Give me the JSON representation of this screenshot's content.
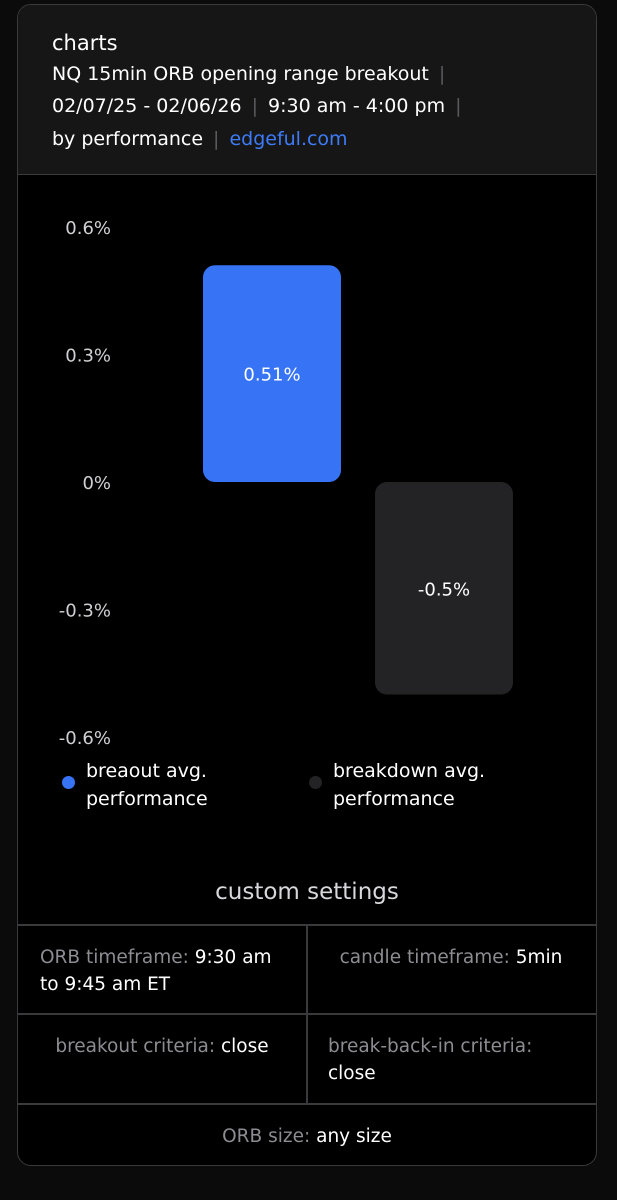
{
  "header": {
    "title": "charts",
    "line1": "NQ 15min ORB opening range breakout",
    "date_range": "02/07/25 - 02/06/26",
    "session": "9:30 am - 4:00 pm",
    "sort": "by performance",
    "link": "edgeful.com"
  },
  "chart_data": {
    "type": "bar",
    "categories": [
      "breaout avg. performance",
      "breakdown avg. performance"
    ],
    "values": [
      0.51,
      -0.5
    ],
    "data_labels": [
      "0.51%",
      "-0.5%"
    ],
    "colors": [
      "#3773f5",
      "#232326"
    ],
    "yticks": [
      0.6,
      0.3,
      0,
      -0.3,
      -0.6
    ],
    "ytick_labels": [
      "0.6%",
      "0.3%",
      "0%",
      "-0.3%",
      "-0.6%"
    ],
    "ylim": [
      -0.6,
      0.6
    ],
    "grid": false,
    "legend_position": "bottom"
  },
  "legend": {
    "breakout_line1": "breaout avg.",
    "breakout_line2": "performance",
    "breakdown_line1": "breakdown avg.",
    "breakdown_line2": "performance",
    "breakout_color": "#3773f5",
    "breakdown_color": "#232326"
  },
  "settings": {
    "title": "custom settings",
    "orb_timeframe_label": "ORB timeframe:",
    "orb_timeframe_value_1": "9:30 am",
    "orb_timeframe_value_2": "to 9:45 am ET",
    "candle_timeframe_label": "candle timeframe:",
    "candle_timeframe_value": "5min",
    "breakout_criteria_label": "breakout criteria:",
    "breakout_criteria_value": "close",
    "breakbackin_label": "break-back-in criteria:",
    "breakbackin_value": "close",
    "orb_size_label": "ORB size:",
    "orb_size_value": "any size"
  }
}
